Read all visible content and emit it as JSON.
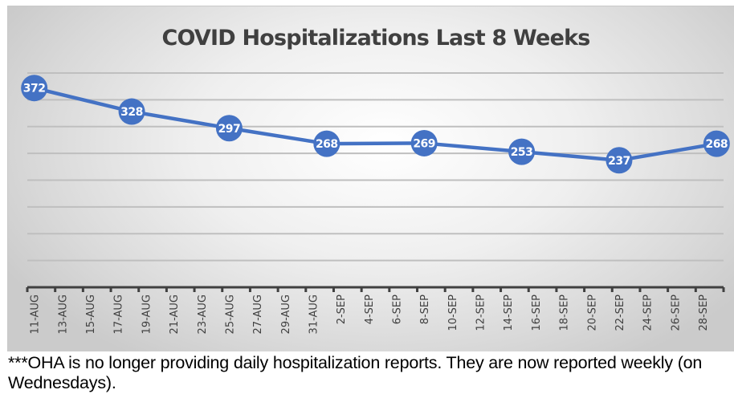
{
  "chart_data": {
    "type": "line",
    "title": "COVID Hospitalizations Last 8 Weeks",
    "xlabel": "",
    "ylabel": "",
    "ylim": [
      0,
      400
    ],
    "y_gridlines": [
      50,
      100,
      150,
      200,
      250,
      300,
      350,
      400
    ],
    "grid": true,
    "legend": "none",
    "x_axis": {
      "start_date": "2021-08-11",
      "end_date": "2021-09-30",
      "tick_labels": [
        "11-AUG",
        "13-AUG",
        "15-AUG",
        "17-AUG",
        "19-AUG",
        "21-AUG",
        "23-AUG",
        "25-AUG",
        "27-AUG",
        "29-AUG",
        "31-AUG",
        "2-SEP",
        "4-SEP",
        "6-SEP",
        "8-SEP",
        "10-SEP",
        "12-SEP",
        "14-SEP",
        "16-SEP",
        "18-SEP",
        "20-SEP",
        "22-SEP",
        "24-SEP",
        "26-SEP",
        "28-SEP"
      ]
    },
    "series": [
      {
        "name": "Hospitalizations",
        "color": "#4472c4",
        "x": [
          "11-AUG",
          "18-AUG",
          "25-AUG",
          "1-SEP",
          "8-SEP",
          "15-SEP",
          "22-SEP",
          "29-SEP"
        ],
        "day_offset": [
          0,
          7,
          14,
          21,
          28,
          35,
          42,
          49
        ],
        "values": [
          372,
          328,
          297,
          268,
          269,
          253,
          237,
          268
        ],
        "data_labels": [
          "372",
          "328",
          "297",
          "268",
          "269",
          "253",
          "237",
          "268"
        ]
      }
    ]
  },
  "footnote": "***OHA is no longer providing daily hospitalization reports.  They are now reported weekly (on Wednesdays)."
}
